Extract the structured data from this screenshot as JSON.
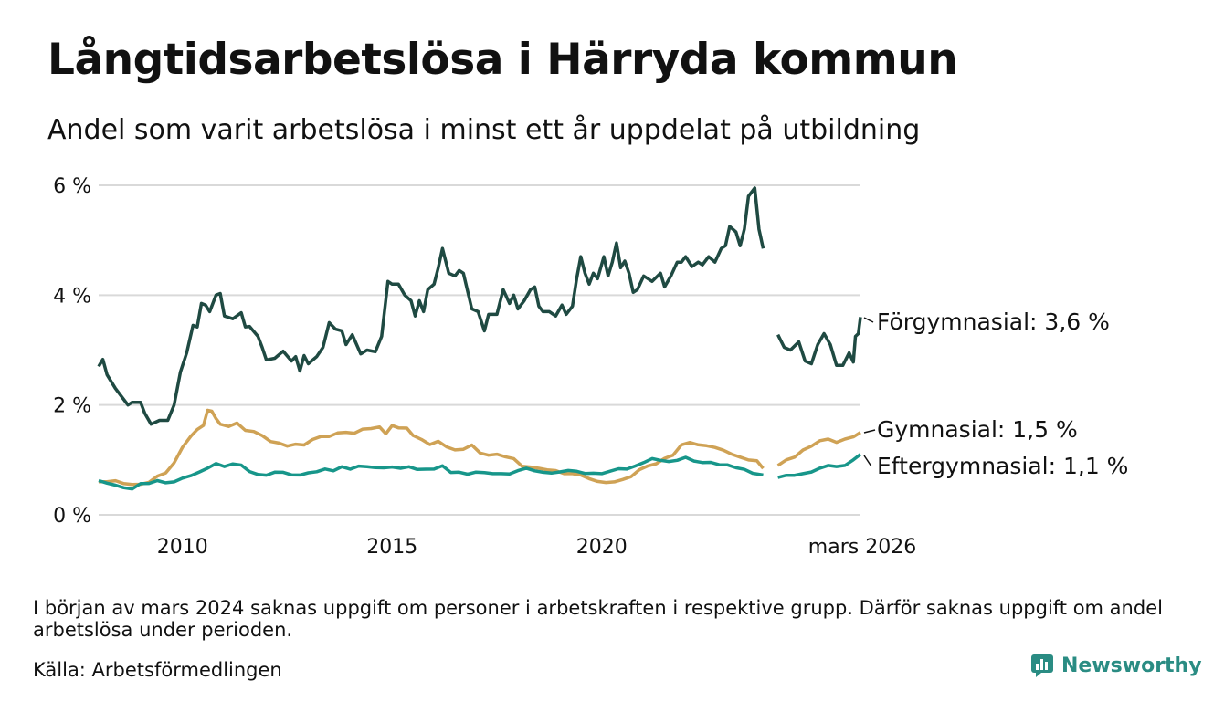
{
  "header": {
    "title": "Långtidsarbetslösa i Härryda kommun",
    "subtitle": "Andel som varit arbetslösa i minst ett år uppdelat på utbildning"
  },
  "footer": {
    "note": "I början av mars 2024 saknas uppgift om personer i arbetskraften i respektive grupp. Därför saknas uppgift om andel arbetslösa under perioden.",
    "source": "Källa: Arbetsförmedlingen",
    "brand": "Newsworthy"
  },
  "colors": {
    "forgymnasial": "#1f4a42",
    "gymnasial": "#cfa255",
    "eftergymnasial": "#17968a",
    "grid": "#d9d9d9",
    "brand": "#2a8c83"
  },
  "chart_data": {
    "type": "line",
    "title": "Långtidsarbetslösa i Härryda kommun",
    "xlabel": "",
    "ylabel": "",
    "xlim": [
      2008.0,
      2026.17
    ],
    "ylim": [
      0,
      6
    ],
    "y_ticks": [
      0,
      2,
      4,
      6
    ],
    "y_tick_labels": [
      "0 %",
      "2 %",
      "4 %",
      "6 %"
    ],
    "x_ticks": [
      2010,
      2015,
      2020,
      2026.17
    ],
    "x_tick_labels": [
      "2010",
      "2015",
      "2020",
      "mars 2026"
    ],
    "gap": {
      "from": 2023.85,
      "to": 2024.2
    },
    "series": [
      {
        "name": "Förgymnasial",
        "end_label": "Förgymnasial: 3,6 %",
        "color_key": "forgymnasial",
        "points": [
          [
            2008.0,
            2.7
          ],
          [
            2008.1,
            2.83
          ],
          [
            2008.2,
            2.55
          ],
          [
            2008.4,
            2.3
          ],
          [
            2008.7,
            2.0
          ],
          [
            2008.8,
            2.05
          ],
          [
            2009.0,
            2.05
          ],
          [
            2009.1,
            1.85
          ],
          [
            2009.25,
            1.65
          ],
          [
            2009.45,
            1.72
          ],
          [
            2009.65,
            1.72
          ],
          [
            2009.8,
            2.0
          ],
          [
            2009.95,
            2.6
          ],
          [
            2010.1,
            2.95
          ],
          [
            2010.25,
            3.45
          ],
          [
            2010.35,
            3.42
          ],
          [
            2010.45,
            3.85
          ],
          [
            2010.55,
            3.82
          ],
          [
            2010.65,
            3.7
          ],
          [
            2010.8,
            4.0
          ],
          [
            2010.9,
            4.03
          ],
          [
            2011.0,
            3.62
          ],
          [
            2011.2,
            3.57
          ],
          [
            2011.4,
            3.68
          ],
          [
            2011.5,
            3.42
          ],
          [
            2011.6,
            3.43
          ],
          [
            2011.8,
            3.25
          ],
          [
            2011.9,
            3.05
          ],
          [
            2012.0,
            2.82
          ],
          [
            2012.2,
            2.85
          ],
          [
            2012.4,
            2.98
          ],
          [
            2012.6,
            2.8
          ],
          [
            2012.7,
            2.88
          ],
          [
            2012.8,
            2.62
          ],
          [
            2012.9,
            2.9
          ],
          [
            2013.0,
            2.75
          ],
          [
            2013.2,
            2.88
          ],
          [
            2013.35,
            3.05
          ],
          [
            2013.5,
            3.5
          ],
          [
            2013.65,
            3.38
          ],
          [
            2013.8,
            3.35
          ],
          [
            2013.9,
            3.1
          ],
          [
            2014.05,
            3.28
          ],
          [
            2014.25,
            2.93
          ],
          [
            2014.4,
            3.0
          ],
          [
            2014.6,
            2.97
          ],
          [
            2014.75,
            3.25
          ],
          [
            2014.9,
            4.25
          ],
          [
            2015.0,
            4.2
          ],
          [
            2015.15,
            4.2
          ],
          [
            2015.3,
            4.0
          ],
          [
            2015.45,
            3.9
          ],
          [
            2015.55,
            3.62
          ],
          [
            2015.65,
            3.9
          ],
          [
            2015.75,
            3.7
          ],
          [
            2015.85,
            4.1
          ],
          [
            2016.0,
            4.2
          ],
          [
            2016.1,
            4.5
          ],
          [
            2016.2,
            4.85
          ],
          [
            2016.35,
            4.4
          ],
          [
            2016.5,
            4.35
          ],
          [
            2016.6,
            4.45
          ],
          [
            2016.7,
            4.4
          ],
          [
            2016.9,
            3.75
          ],
          [
            2017.05,
            3.7
          ],
          [
            2017.2,
            3.35
          ],
          [
            2017.3,
            3.65
          ],
          [
            2017.5,
            3.65
          ],
          [
            2017.65,
            4.1
          ],
          [
            2017.8,
            3.85
          ],
          [
            2017.9,
            4.0
          ],
          [
            2018.0,
            3.75
          ],
          [
            2018.15,
            3.9
          ],
          [
            2018.3,
            4.1
          ],
          [
            2018.4,
            4.15
          ],
          [
            2018.5,
            3.8
          ],
          [
            2018.6,
            3.7
          ],
          [
            2018.75,
            3.7
          ],
          [
            2018.9,
            3.62
          ],
          [
            2019.05,
            3.82
          ],
          [
            2019.15,
            3.65
          ],
          [
            2019.3,
            3.8
          ],
          [
            2019.4,
            4.3
          ],
          [
            2019.5,
            4.7
          ],
          [
            2019.6,
            4.4
          ],
          [
            2019.7,
            4.2
          ],
          [
            2019.8,
            4.4
          ],
          [
            2019.9,
            4.3
          ],
          [
            2020.05,
            4.7
          ],
          [
            2020.15,
            4.35
          ],
          [
            2020.25,
            4.6
          ],
          [
            2020.35,
            4.95
          ],
          [
            2020.45,
            4.5
          ],
          [
            2020.55,
            4.62
          ],
          [
            2020.65,
            4.4
          ],
          [
            2020.75,
            4.05
          ],
          [
            2020.85,
            4.1
          ],
          [
            2021.0,
            4.35
          ],
          [
            2021.2,
            4.25
          ],
          [
            2021.4,
            4.4
          ],
          [
            2021.5,
            4.15
          ],
          [
            2021.65,
            4.35
          ],
          [
            2021.8,
            4.6
          ],
          [
            2021.9,
            4.6
          ],
          [
            2022.0,
            4.7
          ],
          [
            2022.15,
            4.52
          ],
          [
            2022.3,
            4.6
          ],
          [
            2022.4,
            4.55
          ],
          [
            2022.55,
            4.7
          ],
          [
            2022.7,
            4.6
          ],
          [
            2022.85,
            4.85
          ],
          [
            2022.95,
            4.9
          ],
          [
            2023.05,
            5.25
          ],
          [
            2023.2,
            5.15
          ],
          [
            2023.3,
            4.9
          ],
          [
            2023.4,
            5.2
          ],
          [
            2023.5,
            5.8
          ],
          [
            2023.65,
            5.95
          ],
          [
            2023.75,
            5.2
          ],
          [
            2023.85,
            4.85
          ]
        ]
      },
      {
        "name": "Gymnasial",
        "end_label": "Gymnasial: 1,5 %",
        "color_key": "gymnasial",
        "points": [
          [
            2008.0,
            0.63
          ],
          [
            2008.2,
            0.6
          ],
          [
            2008.4,
            0.63
          ],
          [
            2008.6,
            0.58
          ],
          [
            2008.8,
            0.55
          ],
          [
            2009.0,
            0.58
          ],
          [
            2009.2,
            0.62
          ],
          [
            2009.4,
            0.68
          ],
          [
            2009.6,
            0.78
          ],
          [
            2009.8,
            0.95
          ],
          [
            2010.0,
            1.2
          ],
          [
            2010.2,
            1.45
          ],
          [
            2010.35,
            1.55
          ],
          [
            2010.5,
            1.6
          ],
          [
            2010.6,
            1.88
          ],
          [
            2010.7,
            1.9
          ],
          [
            2010.8,
            1.75
          ],
          [
            2010.9,
            1.63
          ],
          [
            2011.1,
            1.62
          ],
          [
            2011.3,
            1.65
          ],
          [
            2011.5,
            1.55
          ],
          [
            2011.7,
            1.5
          ],
          [
            2011.9,
            1.45
          ],
          [
            2012.1,
            1.32
          ],
          [
            2012.3,
            1.28
          ],
          [
            2012.5,
            1.25
          ],
          [
            2012.7,
            1.28
          ],
          [
            2012.9,
            1.28
          ],
          [
            2013.1,
            1.35
          ],
          [
            2013.3,
            1.42
          ],
          [
            2013.5,
            1.45
          ],
          [
            2013.7,
            1.48
          ],
          [
            2013.9,
            1.52
          ],
          [
            2014.1,
            1.5
          ],
          [
            2014.3,
            1.55
          ],
          [
            2014.5,
            1.6
          ],
          [
            2014.7,
            1.6
          ],
          [
            2014.85,
            1.5
          ],
          [
            2015.0,
            1.62
          ],
          [
            2015.15,
            1.6
          ],
          [
            2015.35,
            1.55
          ],
          [
            2015.5,
            1.45
          ],
          [
            2015.7,
            1.35
          ],
          [
            2015.9,
            1.3
          ],
          [
            2016.1,
            1.35
          ],
          [
            2016.3,
            1.25
          ],
          [
            2016.5,
            1.2
          ],
          [
            2016.7,
            1.2
          ],
          [
            2016.9,
            1.25
          ],
          [
            2017.1,
            1.1
          ],
          [
            2017.3,
            1.1
          ],
          [
            2017.5,
            1.08
          ],
          [
            2017.7,
            1.05
          ],
          [
            2017.9,
            1.0
          ],
          [
            2018.1,
            0.9
          ],
          [
            2018.3,
            0.85
          ],
          [
            2018.5,
            0.87
          ],
          [
            2018.7,
            0.82
          ],
          [
            2018.9,
            0.8
          ],
          [
            2019.1,
            0.75
          ],
          [
            2019.3,
            0.75
          ],
          [
            2019.5,
            0.72
          ],
          [
            2019.7,
            0.65
          ],
          [
            2019.9,
            0.62
          ],
          [
            2020.1,
            0.6
          ],
          [
            2020.3,
            0.58
          ],
          [
            2020.5,
            0.62
          ],
          [
            2020.7,
            0.72
          ],
          [
            2020.9,
            0.85
          ],
          [
            2021.1,
            0.9
          ],
          [
            2021.3,
            0.95
          ],
          [
            2021.5,
            1.0
          ],
          [
            2021.7,
            1.1
          ],
          [
            2021.9,
            1.25
          ],
          [
            2022.1,
            1.33
          ],
          [
            2022.3,
            1.3
          ],
          [
            2022.5,
            1.28
          ],
          [
            2022.7,
            1.25
          ],
          [
            2022.9,
            1.18
          ],
          [
            2023.1,
            1.1
          ],
          [
            2023.3,
            1.05
          ],
          [
            2023.5,
            1.0
          ],
          [
            2023.7,
            0.98
          ],
          [
            2023.85,
            0.85
          ]
        ]
      },
      {
        "name": "Eftergymnasial",
        "end_label": "Eftergymnasial: 1,1 %",
        "color_key": "eftergymnasial",
        "points": [
          [
            2008.0,
            0.62
          ],
          [
            2008.2,
            0.58
          ],
          [
            2008.4,
            0.55
          ],
          [
            2008.6,
            0.47
          ],
          [
            2008.8,
            0.5
          ],
          [
            2009.0,
            0.55
          ],
          [
            2009.2,
            0.6
          ],
          [
            2009.4,
            0.62
          ],
          [
            2009.6,
            0.6
          ],
          [
            2009.8,
            0.6
          ],
          [
            2010.0,
            0.65
          ],
          [
            2010.2,
            0.7
          ],
          [
            2010.4,
            0.75
          ],
          [
            2010.6,
            0.85
          ],
          [
            2010.8,
            0.92
          ],
          [
            2011.0,
            0.9
          ],
          [
            2011.2,
            0.92
          ],
          [
            2011.4,
            0.88
          ],
          [
            2011.6,
            0.8
          ],
          [
            2011.8,
            0.72
          ],
          [
            2012.0,
            0.75
          ],
          [
            2012.2,
            0.8
          ],
          [
            2012.4,
            0.78
          ],
          [
            2012.6,
            0.7
          ],
          [
            2012.8,
            0.75
          ],
          [
            2013.0,
            0.78
          ],
          [
            2013.2,
            0.8
          ],
          [
            2013.4,
            0.82
          ],
          [
            2013.6,
            0.8
          ],
          [
            2013.8,
            0.85
          ],
          [
            2014.0,
            0.85
          ],
          [
            2014.2,
            0.87
          ],
          [
            2014.4,
            0.85
          ],
          [
            2014.6,
            0.88
          ],
          [
            2014.8,
            0.85
          ],
          [
            2015.0,
            0.85
          ],
          [
            2015.2,
            0.82
          ],
          [
            2015.4,
            0.85
          ],
          [
            2015.6,
            0.82
          ],
          [
            2015.8,
            0.85
          ],
          [
            2016.0,
            0.83
          ],
          [
            2016.2,
            0.88
          ],
          [
            2016.4,
            0.78
          ],
          [
            2016.6,
            0.75
          ],
          [
            2016.8,
            0.75
          ],
          [
            2017.0,
            0.76
          ],
          [
            2017.2,
            0.75
          ],
          [
            2017.4,
            0.76
          ],
          [
            2017.6,
            0.78
          ],
          [
            2017.8,
            0.75
          ],
          [
            2018.0,
            0.8
          ],
          [
            2018.2,
            0.85
          ],
          [
            2018.4,
            0.82
          ],
          [
            2018.6,
            0.78
          ],
          [
            2018.8,
            0.75
          ],
          [
            2019.0,
            0.78
          ],
          [
            2019.2,
            0.78
          ],
          [
            2019.4,
            0.8
          ],
          [
            2019.6,
            0.78
          ],
          [
            2019.8,
            0.75
          ],
          [
            2020.0,
            0.78
          ],
          [
            2020.2,
            0.8
          ],
          [
            2020.4,
            0.82
          ],
          [
            2020.6,
            0.85
          ],
          [
            2020.8,
            0.9
          ],
          [
            2021.0,
            0.95
          ],
          [
            2021.2,
            1.0
          ],
          [
            2021.4,
            0.98
          ],
          [
            2021.6,
            0.95
          ],
          [
            2021.8,
            0.98
          ],
          [
            2022.0,
            1.02
          ],
          [
            2022.2,
            1.0
          ],
          [
            2022.4,
            0.98
          ],
          [
            2022.6,
            0.95
          ],
          [
            2022.8,
            0.92
          ],
          [
            2023.0,
            0.88
          ],
          [
            2023.2,
            0.85
          ],
          [
            2023.4,
            0.8
          ],
          [
            2023.6,
            0.75
          ],
          [
            2023.85,
            0.72
          ]
        ]
      }
    ]
  }
}
